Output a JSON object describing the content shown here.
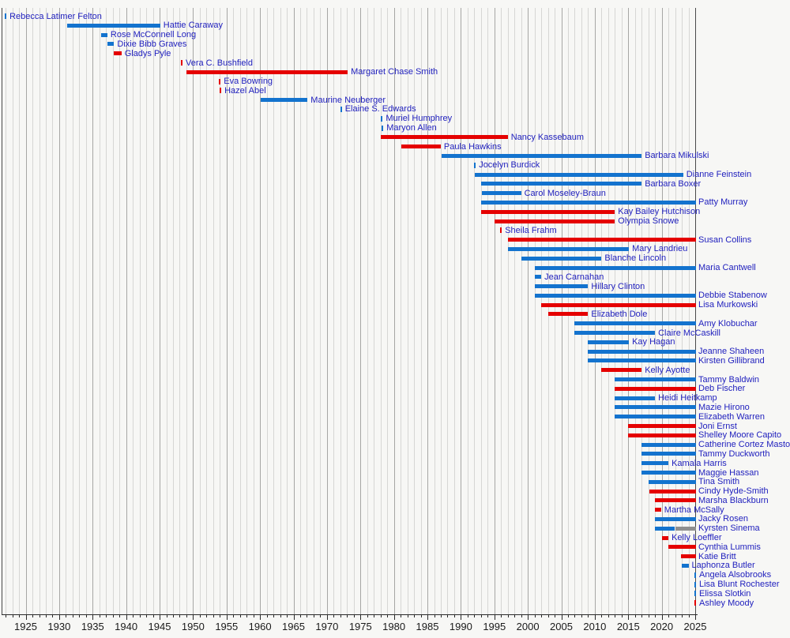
{
  "chart_data": {
    "type": "bar",
    "variant": "horizontal-timeline-gantt",
    "description": "Timeline of terms of women United States senators, colored by party",
    "x_axis": {
      "range_start": 1921.3,
      "range_end": 2025.4,
      "minor_tick_interval": 1,
      "major_tick_interval": 5,
      "tick_labels": [
        "1925",
        "1930",
        "1935",
        "1940",
        "1945",
        "1950",
        "1955",
        "1960",
        "1965",
        "1970",
        "1975",
        "1980",
        "1985",
        "1990",
        "1995",
        "2000",
        "2005",
        "2010",
        "2015",
        "2020",
        "2025"
      ]
    },
    "grid": "vertical, yearly minor lines with darker 5-year major lines",
    "legend_position": "none",
    "palette": {
      "democrat": "#1373ce",
      "republican": "#e50000",
      "independent": "#8f8f8f",
      "label_text": "#2121be",
      "axis_text": "#1a1a1a",
      "grid_minor": "#d6d6d4",
      "grid_major": "#a6a6a4",
      "border": "#4a4a4a",
      "background": "#f7f7f5"
    },
    "senators": [
      {
        "name": "Rebecca Latimer Felton",
        "party": "D",
        "marker": 1922.0
      },
      {
        "name": "Hattie Caraway",
        "party": "D",
        "start": 1931.2,
        "end": 1945.1
      },
      {
        "name": "Rose McConnell Long",
        "party": "D",
        "start": 1936.3,
        "end": 1937.2
      },
      {
        "name": "Dixie Bibb Graves",
        "party": "D",
        "start": 1937.2,
        "end": 1938.2
      },
      {
        "name": "Gladys Pyle",
        "party": "R",
        "start": 1938.2,
        "end": 1939.3
      },
      {
        "name": "Vera C. Bushfield",
        "party": "R",
        "marker": 1948.3
      },
      {
        "name": "Margaret Chase Smith",
        "party": "R",
        "start": 1949.0,
        "end": 1973.1
      },
      {
        "name": "Eva Bowring",
        "party": "R",
        "marker": 1954.0
      },
      {
        "name": "Hazel Abel",
        "party": "R",
        "marker": 1954.1
      },
      {
        "name": "Maurine Neuberger",
        "party": "D",
        "start": 1960.1,
        "end": 1967.1
      },
      {
        "name": "Elaine S. Edwards",
        "party": "D",
        "marker": 1972.1
      },
      {
        "name": "Muriel Humphrey",
        "party": "D",
        "marker": 1978.2
      },
      {
        "name": "Maryon Allen",
        "party": "D",
        "marker": 1978.3
      },
      {
        "name": "Nancy Kassebaum",
        "party": "R",
        "start": 1978.0,
        "end": 1997.0
      },
      {
        "name": "Paula Hawkins",
        "party": "R",
        "start": 1981.1,
        "end": 1987.0
      },
      {
        "name": "Barbara Mikulski",
        "party": "D",
        "start": 1987.1,
        "end": 2017.0
      },
      {
        "name": "Jocelyn Burdick",
        "party": "D",
        "marker": 1992.1
      },
      {
        "name": "Dianne Feinstein",
        "party": "D",
        "start": 1992.1,
        "end": 2023.2
      },
      {
        "name": "Barbara Boxer",
        "party": "D",
        "start": 1993.0,
        "end": 2017.0
      },
      {
        "name": "Carol Moseley-Braun",
        "party": "D",
        "start": 1993.1,
        "end": 1999.0
      },
      {
        "name": "Patty Murray",
        "party": "D",
        "start": 1993.0,
        "end": 2025.1
      },
      {
        "name": "Kay Bailey Hutchison",
        "party": "R",
        "start": 1993.0,
        "end": 2013.0
      },
      {
        "name": "Olympia Snowe",
        "party": "R",
        "start": 1995.0,
        "end": 2013.0
      },
      {
        "name": "Sheila Frahm",
        "party": "R",
        "marker": 1996.0
      },
      {
        "name": "Susan Collins",
        "party": "R",
        "start": 1997.0,
        "end": 2025.1
      },
      {
        "name": "Mary Landrieu",
        "party": "D",
        "start": 1997.0,
        "end": 2015.1
      },
      {
        "name": "Blanche Lincoln",
        "party": "D",
        "start": 1999.0,
        "end": 2011.0
      },
      {
        "name": "Maria Cantwell",
        "party": "D",
        "start": 2001.0,
        "end": 2025.1
      },
      {
        "name": "Jean Carnahan",
        "party": "D",
        "start": 2001.0,
        "end": 2002.0
      },
      {
        "name": "Hillary Clinton",
        "party": "D",
        "start": 2001.0,
        "end": 2009.0
      },
      {
        "name": "Debbie Stabenow",
        "party": "D",
        "start": 2001.0,
        "end": 2025.1
      },
      {
        "name": "Lisa Murkowski",
        "party": "R",
        "start": 2002.0,
        "end": 2025.1
      },
      {
        "name": "Elizabeth Dole",
        "party": "R",
        "start": 2003.0,
        "end": 2009.0
      },
      {
        "name": "Amy Klobuchar",
        "party": "D",
        "start": 2007.0,
        "end": 2025.1
      },
      {
        "name": "Claire McCaskill",
        "party": "D",
        "start": 2007.0,
        "end": 2019.0
      },
      {
        "name": "Kay Hagan",
        "party": "D",
        "start": 2009.0,
        "end": 2015.1
      },
      {
        "name": "Jeanne Shaheen",
        "party": "D",
        "start": 2009.0,
        "end": 2025.1
      },
      {
        "name": "Kirsten Gillibrand",
        "party": "D",
        "start": 2009.0,
        "end": 2025.1
      },
      {
        "name": "Kelly Ayotte",
        "party": "R",
        "start": 2011.0,
        "end": 2017.0
      },
      {
        "name": "Tammy Baldwin",
        "party": "D",
        "start": 2013.0,
        "end": 2025.1
      },
      {
        "name": "Deb Fischer",
        "party": "R",
        "start": 2013.0,
        "end": 2025.1
      },
      {
        "name": "Heidi Heitkamp",
        "party": "D",
        "start": 2013.0,
        "end": 2019.0
      },
      {
        "name": "Mazie Hirono",
        "party": "D",
        "start": 2013.0,
        "end": 2025.1
      },
      {
        "name": "Elizabeth Warren",
        "party": "D",
        "start": 2013.0,
        "end": 2025.1
      },
      {
        "name": "Joni Ernst",
        "party": "R",
        "start": 2015.0,
        "end": 2025.1
      },
      {
        "name": "Shelley Moore Capito",
        "party": "R",
        "start": 2015.0,
        "end": 2025.1
      },
      {
        "name": "Catherine Cortez Masto",
        "party": "D",
        "start": 2017.0,
        "end": 2025.1
      },
      {
        "name": "Tammy Duckworth",
        "party": "D",
        "start": 2017.0,
        "end": 2025.1
      },
      {
        "name": "Kamala Harris",
        "party": "D",
        "start": 2017.0,
        "end": 2021.0
      },
      {
        "name": "Maggie Hassan",
        "party": "D",
        "start": 2017.0,
        "end": 2025.1
      },
      {
        "name": "Tina Smith",
        "party": "D",
        "start": 2018.0,
        "end": 2025.1
      },
      {
        "name": "Cindy Hyde-Smith",
        "party": "R",
        "start": 2018.2,
        "end": 2025.1
      },
      {
        "name": "Marsha Blackburn",
        "party": "R",
        "start": 2019.0,
        "end": 2025.1
      },
      {
        "name": "Martha McSally",
        "party": "R",
        "start": 2019.0,
        "end": 2019.9
      },
      {
        "name": "Jacky Rosen",
        "party": "D",
        "start": 2019.0,
        "end": 2025.1
      },
      {
        "name": "Kyrsten Sinema",
        "party": "D",
        "segments": [
          {
            "color": "democrat",
            "start": 2019.0,
            "end": 2022.0
          },
          {
            "color": "independent",
            "start": 2022.0,
            "end": 2025.1
          }
        ]
      },
      {
        "name": "Kelly Loeffler",
        "party": "R",
        "start": 2020.0,
        "end": 2021.0
      },
      {
        "name": "Cynthia Lummis",
        "party": "R",
        "start": 2021.0,
        "end": 2025.1
      },
      {
        "name": "Katie Britt",
        "party": "R",
        "start": 2022.9,
        "end": 2025.1
      },
      {
        "name": "Laphonza Butler",
        "party": "D",
        "start": 2023.0,
        "end": 2024.0
      },
      {
        "name": "Angela Alsobrooks",
        "party": "D",
        "marker": 2025.0
      },
      {
        "name": "Lisa Blunt Rochester",
        "party": "D",
        "marker": 2025.0
      },
      {
        "name": "Elissa Slotkin",
        "party": "D",
        "marker": 2025.0
      },
      {
        "name": "Ashley Moody",
        "party": "R",
        "marker": 2025.0
      }
    ]
  }
}
